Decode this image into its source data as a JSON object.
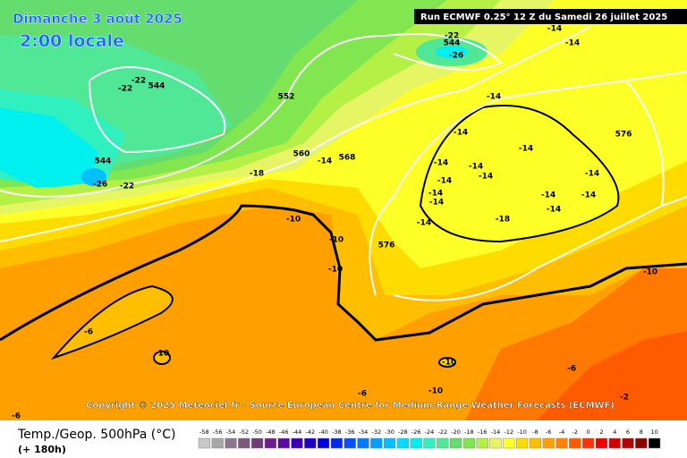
{
  "header": {
    "date": "Dimanche 3 août 2025",
    "time": "2:00 locale",
    "run": "Run ECMWF 0.25° 12 Z du Samedi 26 juillet 2025"
  },
  "copyright": "Copyright © 2025 Meteociel.fr - Source European Centre for Medium-Range Weather Forecasts (ECMWF)",
  "footer": {
    "title": "Temp./Geop. 500hPa (°C)",
    "lead": "(+ 180h)"
  },
  "scale": {
    "values": [
      -58,
      -56,
      -54,
      -52,
      -50,
      -48,
      -46,
      -44,
      -42,
      -40,
      -38,
      -36,
      -34,
      -32,
      -30,
      -28,
      -26,
      -24,
      -22,
      -20,
      -18,
      -16,
      -14,
      -12,
      -10,
      -8,
      -6,
      -4,
      -2,
      0,
      2,
      4,
      6,
      8,
      10
    ],
    "colors": [
      "#c8c8c8",
      "#a8a8a8",
      "#8c788c",
      "#7a5a7a",
      "#6e3c78",
      "#6e1e8c",
      "#5a0aa0",
      "#3c00b4",
      "#1e00c8",
      "#0000dc",
      "#0028f0",
      "#0050ff",
      "#0078ff",
      "#00a0ff",
      "#00c0ff",
      "#00dcff",
      "#00f0f0",
      "#30f0c0",
      "#50e896",
      "#64dc6e",
      "#82e650",
      "#b4f046",
      "#e6f564",
      "#ffff28",
      "#ffdc00",
      "#ffbe00",
      "#ffa000",
      "#ff8200",
      "#ff5a00",
      "#ff3200",
      "#f00000",
      "#d20000",
      "#b40000",
      "#8c0000",
      "#000000"
    ]
  },
  "map_labels": [
    -22,
    544,
    -26,
    -14,
    -14,
    -22,
    -22,
    544,
    552,
    -14,
    -14,
    576,
    544,
    -26,
    -22,
    560,
    -14,
    568,
    -18,
    -14,
    -14,
    -14,
    -14,
    -14,
    -14,
    -14,
    -14,
    -14,
    -14,
    -14,
    -18,
    -14,
    -10,
    -10,
    576,
    -10,
    -10,
    -6,
    -10,
    -10,
    -6,
    -6,
    -10,
    -2,
    -6
  ]
}
